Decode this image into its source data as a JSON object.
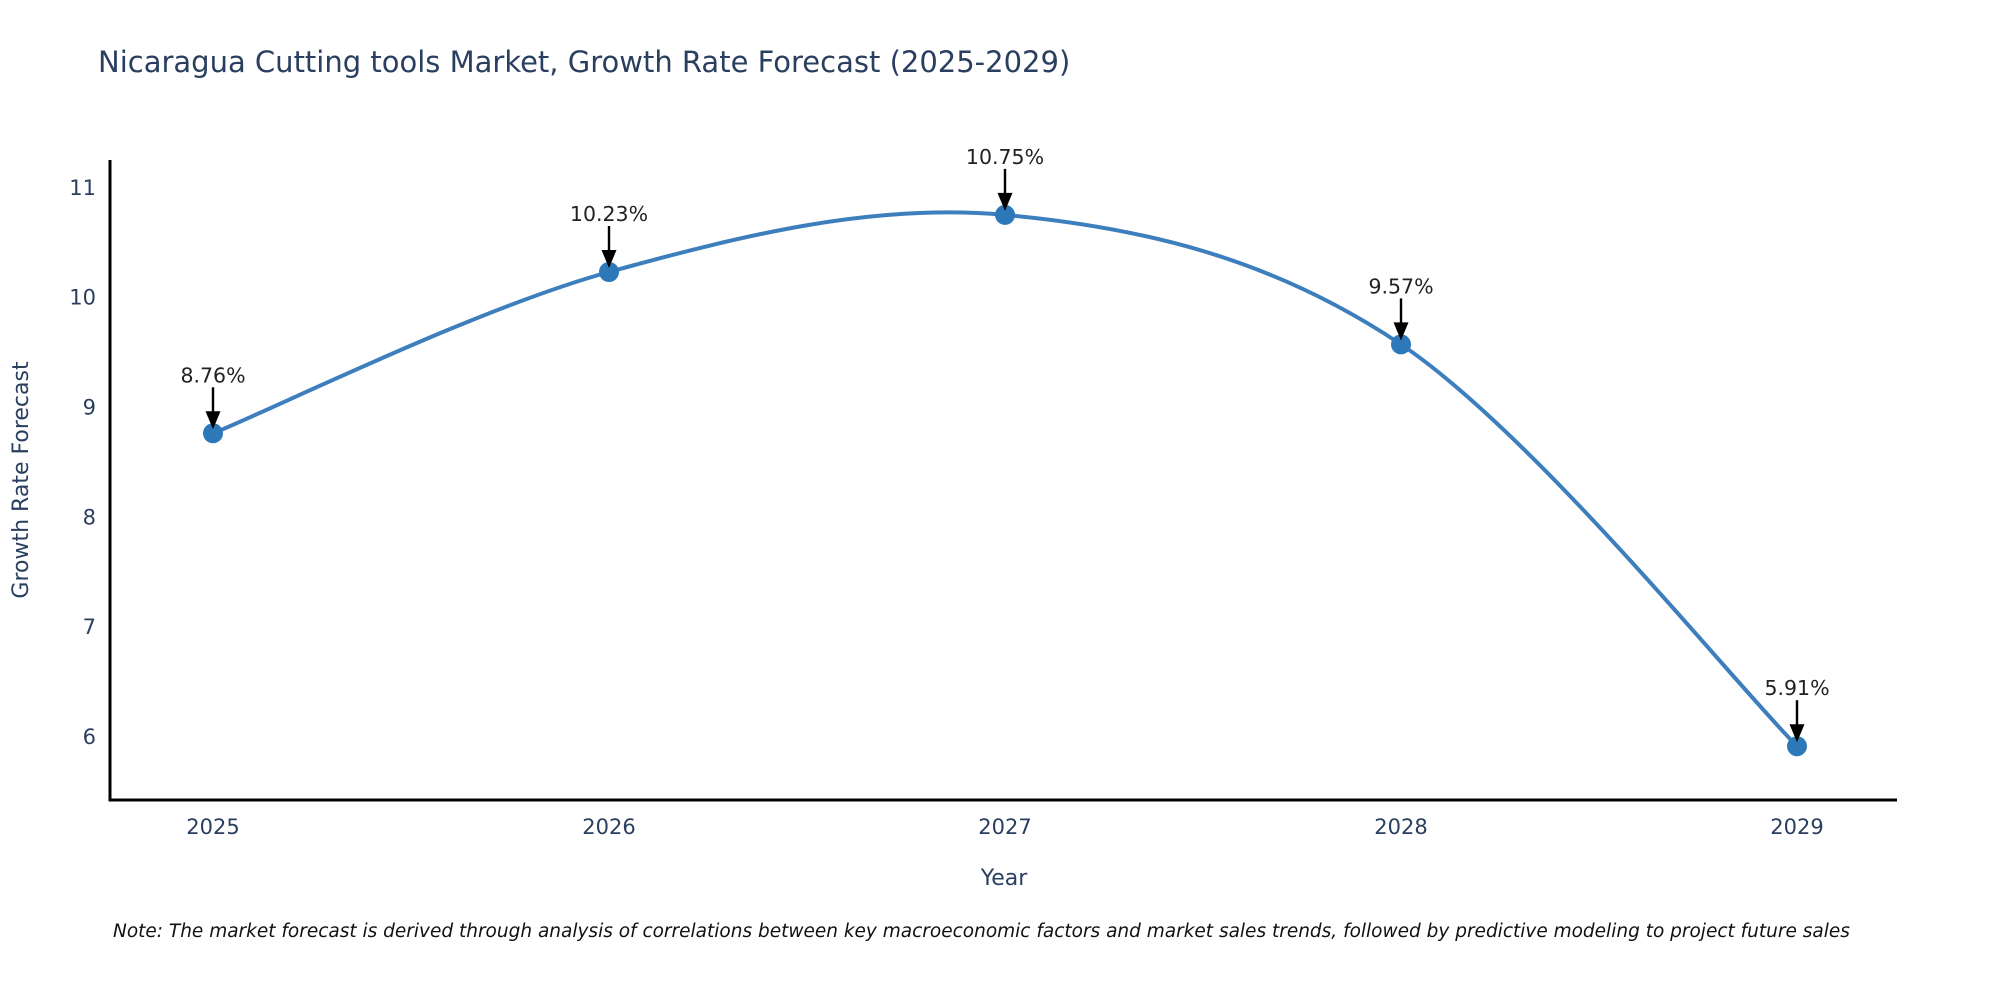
{
  "footnote": "Note: The market forecast is derived through analysis of correlations between key macroeconomic factors and market sales trends, followed by predictive modeling to project future sales",
  "chart_data": {
    "type": "line",
    "title": "Nicaragua Cutting tools Market, Growth Rate Forecast (2025-2029)",
    "xlabel": "Year",
    "ylabel": "Growth Rate Forecast",
    "x": [
      2025,
      2026,
      2027,
      2028,
      2029
    ],
    "x_tick_labels": [
      "2025",
      "2026",
      "2027",
      "2028",
      "2029"
    ],
    "series": [
      {
        "name": "Growth Rate Forecast",
        "values": [
          8.76,
          10.23,
          10.75,
          9.57,
          5.91
        ],
        "point_labels": [
          "8.76%",
          "10.23%",
          "10.75%",
          "9.57%",
          "5.91%"
        ]
      }
    ],
    "y_ticks": [
      6,
      7,
      8,
      9,
      10,
      11
    ],
    "ylim": [
      5.42,
      11.25
    ],
    "line_shape": "spline",
    "grid": false,
    "legend": "none",
    "annotations_style": "value-label-with-down-arrow",
    "colors": {
      "line": "#3d7ebd",
      "marker": "#2d78b9",
      "axis": "#000000",
      "title_text": "#2a3f5f",
      "tick_text": "#2a3f5f",
      "axis_title_text": "#2a3f5f",
      "annotation_text": "#222222",
      "arrow": "#000000",
      "note_text": "#111111",
      "background": "#ffffff"
    }
  }
}
